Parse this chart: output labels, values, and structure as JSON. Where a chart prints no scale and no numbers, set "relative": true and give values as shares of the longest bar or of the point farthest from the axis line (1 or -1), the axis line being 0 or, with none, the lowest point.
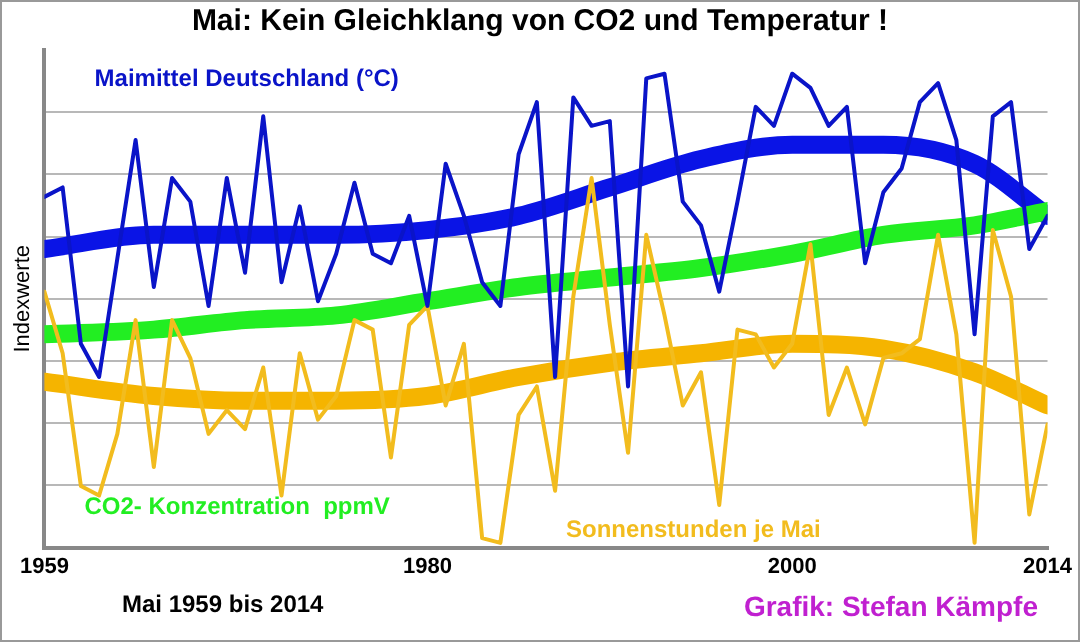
{
  "chart_data": {
    "type": "line",
    "title": "Mai: Kein Gleichklang von CO2 und Temperatur !",
    "ylabel": "Indexwerte",
    "relative": true,
    "grid": "y",
    "legend": false,
    "marker": "none",
    "annotations": [
      "Mai 1959 bis 2014",
      "Grafik: Stefan Kämpfe"
    ],
    "xlim": [
      1959,
      2014
    ],
    "xticks": [
      1959,
      1980,
      2000,
      2014
    ],
    "x": [
      1959,
      1960,
      1961,
      1962,
      1963,
      1964,
      1965,
      1966,
      1967,
      1968,
      1969,
      1970,
      1971,
      1972,
      1973,
      1974,
      1975,
      1976,
      1977,
      1978,
      1979,
      1980,
      1981,
      1982,
      1983,
      1984,
      1985,
      1986,
      1987,
      1988,
      1989,
      1990,
      1991,
      1992,
      1993,
      1994,
      1995,
      1996,
      1997,
      1998,
      1999,
      2000,
      2001,
      2002,
      2003,
      2004,
      2005,
      2006,
      2007,
      2008,
      2009,
      2010,
      2011,
      2012,
      2013,
      2014
    ],
    "series": [
      {
        "name": "Maimittel Deutschland (°C)",
        "color": "#0a14c8",
        "values": [
          0.74,
          0.76,
          0.43,
          0.36,
          0.61,
          0.86,
          0.55,
          0.78,
          0.73,
          0.51,
          0.78,
          0.58,
          0.91,
          0.56,
          0.72,
          0.52,
          0.62,
          0.77,
          0.62,
          0.6,
          0.7,
          0.51,
          0.81,
          0.7,
          0.56,
          0.51,
          0.83,
          0.94,
          0.36,
          0.95,
          0.89,
          0.9,
          0.34,
          0.99,
          1.0,
          0.73,
          0.68,
          0.54,
          0.73,
          0.93,
          0.89,
          1.0,
          0.97,
          0.89,
          0.93,
          0.6,
          0.75,
          0.8,
          0.94,
          0.98,
          0.86,
          0.45,
          0.91,
          0.94,
          0.63,
          0.7
        ]
      },
      {
        "name": "Sonnenstunden je Mai",
        "color": "#f2bc1e",
        "values": [
          0.54,
          0.41,
          0.13,
          0.11,
          0.24,
          0.48,
          0.17,
          0.48,
          0.4,
          0.24,
          0.29,
          0.25,
          0.38,
          0.11,
          0.41,
          0.27,
          0.32,
          0.48,
          0.46,
          0.19,
          0.47,
          0.51,
          0.3,
          0.43,
          0.02,
          0.01,
          0.28,
          0.34,
          0.12,
          0.53,
          0.78,
          0.47,
          0.2,
          0.66,
          0.49,
          0.3,
          0.37,
          0.09,
          0.46,
          0.45,
          0.38,
          0.43,
          0.64,
          0.28,
          0.38,
          0.26,
          0.4,
          0.41,
          0.44,
          0.66,
          0.45,
          0.01,
          0.67,
          0.53,
          0.07,
          0.26
        ]
      },
      {
        "color": "#f5b400",
        "x": [
          1959,
          1965,
          1970,
          1975,
          1980,
          1985,
          1990,
          1995,
          2000,
          2005,
          2010,
          2014
        ],
        "values": [
          0.35,
          0.32,
          0.31,
          0.31,
          0.32,
          0.36,
          0.39,
          0.41,
          0.43,
          0.42,
          0.37,
          0.3
        ]
      },
      {
        "name": "CO2- Konzentration  ppmV",
        "color": "#22ee22",
        "x": [
          1959,
          1965,
          1970,
          1975,
          1980,
          1985,
          1990,
          1995,
          2000,
          2005,
          2010,
          2014
        ],
        "values": [
          0.45,
          0.46,
          0.48,
          0.49,
          0.52,
          0.55,
          0.57,
          0.59,
          0.62,
          0.66,
          0.68,
          0.71
        ]
      },
      {
        "color": "#0a14e6",
        "x": [
          1959,
          1965,
          1970,
          1975,
          1980,
          1985,
          1990,
          1995,
          2000,
          2005,
          2010,
          2014
        ],
        "values": [
          0.63,
          0.66,
          0.66,
          0.66,
          0.67,
          0.7,
          0.76,
          0.82,
          0.85,
          0.85,
          0.81,
          0.7
        ]
      }
    ]
  }
}
